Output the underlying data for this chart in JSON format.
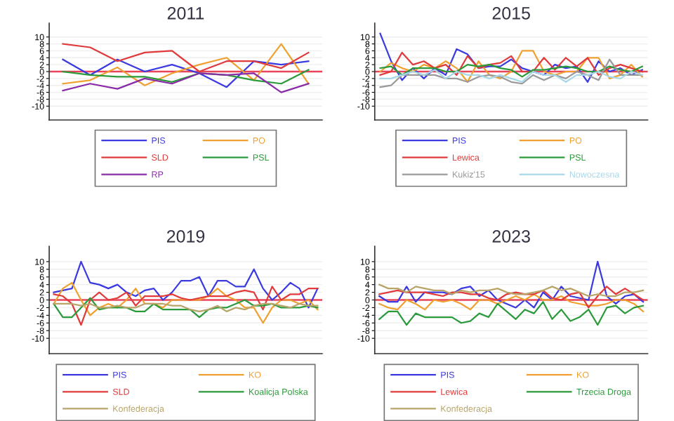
{
  "chart_data": [
    {
      "type": "line",
      "title": "2011",
      "categories": [
        null,
        null,
        null,
        null,
        null,
        null,
        null,
        null,
        null,
        null
      ],
      "ylim": [
        -14,
        14
      ],
      "yticks": [
        -10,
        -8,
        -6,
        -4,
        -2,
        0,
        2,
        4,
        6,
        8,
        10
      ],
      "grid": "y",
      "legend": "bottom",
      "tick_labels": "y",
      "ref_lines": [
        {
          "axis": "y",
          "value": 0,
          "color": "#e8445a"
        }
      ],
      "series": [
        {
          "name": "PIS",
          "color": "#3a3ae0",
          "values": [
            3.5,
            -1,
            3.5,
            0,
            2,
            -0.5,
            -4.5,
            3,
            2,
            3
          ]
        },
        {
          "name": "PO",
          "color": "#f0a030",
          "values": [
            -3.5,
            -2.5,
            1.2,
            -4,
            -0.5,
            2,
            4,
            -2.5,
            8,
            -3.5
          ]
        },
        {
          "name": "SLD",
          "color": "#e03a3a",
          "values": [
            8,
            7,
            3,
            5.5,
            6,
            0,
            3,
            3,
            1,
            5.5
          ]
        },
        {
          "name": "PSL",
          "color": "#2a9a3a",
          "values": [
            0,
            -1,
            -1.5,
            -1.5,
            -3,
            -0.5,
            -1,
            -2.5,
            -3.5,
            0.5
          ]
        },
        {
          "name": "RP",
          "color": "#8a2ca8",
          "values": [
            -5.5,
            -3.5,
            -5,
            -2,
            -3.5,
            -0.5,
            -1,
            -0.5,
            -6,
            -3.5
          ]
        }
      ]
    },
    {
      "type": "line",
      "title": "2015",
      "categories": [
        null,
        null,
        null,
        null,
        null,
        null,
        null,
        null,
        null,
        null,
        null,
        null,
        null,
        null,
        null,
        null,
        null,
        null,
        null,
        null,
        null,
        null,
        null,
        null,
        null
      ],
      "ylim": [
        -14,
        14
      ],
      "yticks": [
        -10,
        -8,
        -6,
        -4,
        -2,
        0,
        2,
        4,
        6,
        8,
        10
      ],
      "grid": "y",
      "legend": "bottom",
      "tick_labels": "y",
      "ref_lines": [
        {
          "axis": "y",
          "value": 0,
          "color": "#e8445a"
        }
      ],
      "series": [
        {
          "name": "PIS",
          "color": "#3a3ae0",
          "values": [
            11,
            3,
            -2.5,
            1,
            -2,
            1,
            -1,
            6.5,
            5,
            1,
            1.5,
            1.5,
            3.5,
            1,
            0,
            -1,
            2,
            1,
            1.5,
            -3,
            3,
            0,
            1,
            -1,
            0.5
          ]
        },
        {
          "name": "PO",
          "color": "#f0a030",
          "values": [
            0,
            2.5,
            1,
            0,
            2,
            1,
            3,
            1,
            -3,
            3,
            -1,
            -2,
            0,
            6,
            6,
            0,
            -1,
            0,
            0,
            4,
            4,
            -2,
            -1,
            2,
            -1.5
          ]
        },
        {
          "name": "Lewica",
          "color": "#e03a3a",
          "values": [
            -1,
            0,
            5.5,
            2,
            3,
            1,
            2,
            -1,
            4.5,
            1,
            2,
            2.5,
            4.5,
            0,
            0,
            4,
            0.5,
            4,
            1.5,
            4,
            -1,
            1,
            2,
            1,
            0
          ]
        },
        {
          "name": "PSL",
          "color": "#2a9a3a",
          "values": [
            1,
            1.5,
            -1,
            1,
            1,
            1,
            0,
            0,
            2,
            1.5,
            2,
            1,
            0.5,
            -1.5,
            0.5,
            0.5,
            1,
            1.5,
            1,
            0,
            0,
            1.5,
            0.5,
            0,
            1.5
          ]
        },
        {
          "name": "Kukiz'15",
          "color": "#9a9a9a",
          "values": [
            -4.5,
            -4,
            -1,
            -1,
            -1,
            -1,
            -2,
            -2,
            -3,
            -1.5,
            -1,
            -1.5,
            -3,
            -3.5,
            -1,
            -2.5,
            -1,
            -2,
            0,
            -1,
            -2.5,
            3.5,
            -1,
            -1,
            -1
          ]
        },
        {
          "name": "Nowoczesna",
          "color": "#a8d8e8",
          "values": [
            -2,
            -2,
            -1,
            0,
            -1,
            0.5,
            -2,
            0,
            -1,
            -1,
            -2,
            -1,
            -2,
            -3,
            0,
            -1,
            -1,
            -3,
            -1,
            -1,
            0,
            -1.5,
            -2,
            0,
            -1
          ]
        }
      ]
    },
    {
      "type": "line",
      "title": "2019",
      "categories": [
        null,
        null,
        null,
        null,
        null,
        null,
        null,
        null,
        null,
        null,
        null,
        null,
        null,
        null,
        null,
        null,
        null,
        null,
        null,
        null,
        null,
        null,
        null,
        null,
        null,
        null,
        null,
        null,
        null,
        null
      ],
      "ylim": [
        -14,
        14
      ],
      "yticks": [
        -10,
        -8,
        -6,
        -4,
        -2,
        0,
        2,
        4,
        6,
        8,
        10
      ],
      "grid": "y",
      "legend": "bottom",
      "tick_labels": "y",
      "ref_lines": [
        {
          "axis": "y",
          "value": 0,
          "color": "#e8445a"
        }
      ],
      "series": [
        {
          "name": "PIS",
          "color": "#3a3ae0",
          "values": [
            2,
            2.5,
            3,
            10,
            4.5,
            4,
            3,
            4,
            2,
            1,
            2.5,
            3,
            0,
            2,
            5,
            5,
            6,
            1,
            5,
            5,
            3.5,
            3.5,
            8,
            3,
            0,
            2,
            4.5,
            3,
            -2,
            3
          ]
        },
        {
          "name": "KO",
          "color": "#f0a030",
          "values": [
            -1,
            3,
            4.5,
            0,
            -4,
            -2,
            -1,
            -2,
            0,
            3,
            -1,
            -1,
            -2,
            0,
            0,
            0,
            0,
            1,
            3,
            1,
            0,
            -2,
            -2,
            -6,
            -2,
            0,
            0,
            -1,
            0,
            -2.5
          ]
        },
        {
          "name": "SLD",
          "color": "#e03a3a",
          "values": [
            1.5,
            1,
            -1,
            -6.5,
            0,
            2,
            0,
            0.5,
            2,
            -1.5,
            1,
            1,
            1,
            1.5,
            0.5,
            0,
            0.5,
            1,
            1,
            1,
            2,
            2.5,
            2,
            -2.5,
            3.5,
            0,
            1.5,
            1.5,
            3,
            3
          ]
        },
        {
          "name": "Koalicja Polska",
          "color": "#2a9a3a",
          "values": [
            -1,
            -4.5,
            -4.5,
            -2,
            0.5,
            -2.5,
            -2,
            -2,
            -2,
            -3,
            -3,
            -1,
            -2.5,
            -2.5,
            -2.5,
            -2.5,
            -4.5,
            -2.5,
            -2,
            -2,
            -1,
            0,
            -1.5,
            -1.5,
            -1,
            -2,
            -2,
            -2,
            -1.5,
            -2
          ]
        },
        {
          "name": "Konfederacja",
          "color": "#b8a468",
          "values": [
            -1,
            -1,
            -1,
            -1.5,
            -1,
            -2,
            -2,
            -1.5,
            -2,
            -2,
            -1,
            -1,
            -1,
            -1.5,
            -1.5,
            -2.5,
            -3,
            -2.5,
            -1.5,
            -3,
            -2,
            -2.5,
            -1.5,
            -1,
            -1,
            -1.5,
            -2,
            -1,
            -1.5,
            -1.5
          ]
        }
      ]
    },
    {
      "type": "line",
      "title": "2023",
      "categories": [
        null,
        null,
        null,
        null,
        null,
        null,
        null,
        null,
        null,
        null,
        null,
        null,
        null,
        null,
        null,
        null,
        null,
        null,
        null,
        null,
        null,
        null,
        null,
        null,
        null,
        null,
        null,
        null,
        null,
        null
      ],
      "ylim": [
        -14,
        14
      ],
      "yticks": [
        -10,
        -8,
        -6,
        -4,
        -2,
        0,
        2,
        4,
        6,
        8,
        10
      ],
      "grid": "y",
      "legend": "bottom",
      "tick_labels": "y",
      "ref_lines": [
        {
          "axis": "y",
          "value": 0,
          "color": "#e8445a"
        }
      ],
      "series": [
        {
          "name": "PIS",
          "color": "#3a3ae0",
          "values": [
            1,
            -0.5,
            -0.5,
            3.5,
            -0.5,
            2,
            2,
            2,
            1.5,
            3,
            3.5,
            1,
            2.5,
            0,
            -1,
            -2,
            0,
            -2,
            2,
            0,
            3.5,
            1,
            0.5,
            0,
            10,
            1,
            -1,
            1,
            1.5,
            -0.5
          ]
        },
        {
          "name": "KO",
          "color": "#f0a030",
          "values": [
            -1,
            -2,
            -2.5,
            0,
            -1,
            -2.5,
            0,
            -0.5,
            0,
            -1,
            -2.5,
            0,
            0,
            -1,
            0,
            1,
            0,
            1.5,
            0,
            0,
            1,
            -0.5,
            -1,
            -1.5,
            -1.5,
            -1,
            0,
            0,
            -1,
            -3
          ]
        },
        {
          "name": "Lewica",
          "color": "#e03a3a",
          "values": [
            1.5,
            2,
            2.5,
            2,
            2,
            2,
            1.5,
            1,
            2,
            2,
            1.5,
            1.5,
            0.5,
            0,
            1.5,
            2,
            1.5,
            1.5,
            2.5,
            0.5,
            0,
            1.5,
            2,
            -2,
            1,
            3.5,
            1.5,
            3,
            1.5,
            0
          ]
        },
        {
          "name": "Trzecia Droga",
          "color": "#2a9a3a",
          "values": [
            -5,
            -3,
            -3,
            -6.5,
            -3.5,
            -4.5,
            -4.5,
            -4.5,
            -4.5,
            -6,
            -5.5,
            -3.5,
            -4.5,
            -1,
            -3,
            -5,
            -2.5,
            -3.5,
            -0.5,
            -5,
            -2.5,
            -5.5,
            -4.5,
            -2.5,
            -6.5,
            -2,
            -1.5,
            -3.5,
            -2,
            -1.5
          ]
        },
        {
          "name": "Konfederacja",
          "color": "#b8a468",
          "values": [
            4,
            3,
            3,
            2,
            3.5,
            3,
            2.5,
            2.5,
            1.5,
            2.5,
            2,
            2.5,
            2.5,
            3,
            2,
            1.5,
            1.5,
            2,
            2.5,
            3.5,
            2.5,
            3,
            2,
            1,
            1.5,
            1,
            1,
            2,
            2,
            2.5
          ]
        }
      ]
    }
  ]
}
